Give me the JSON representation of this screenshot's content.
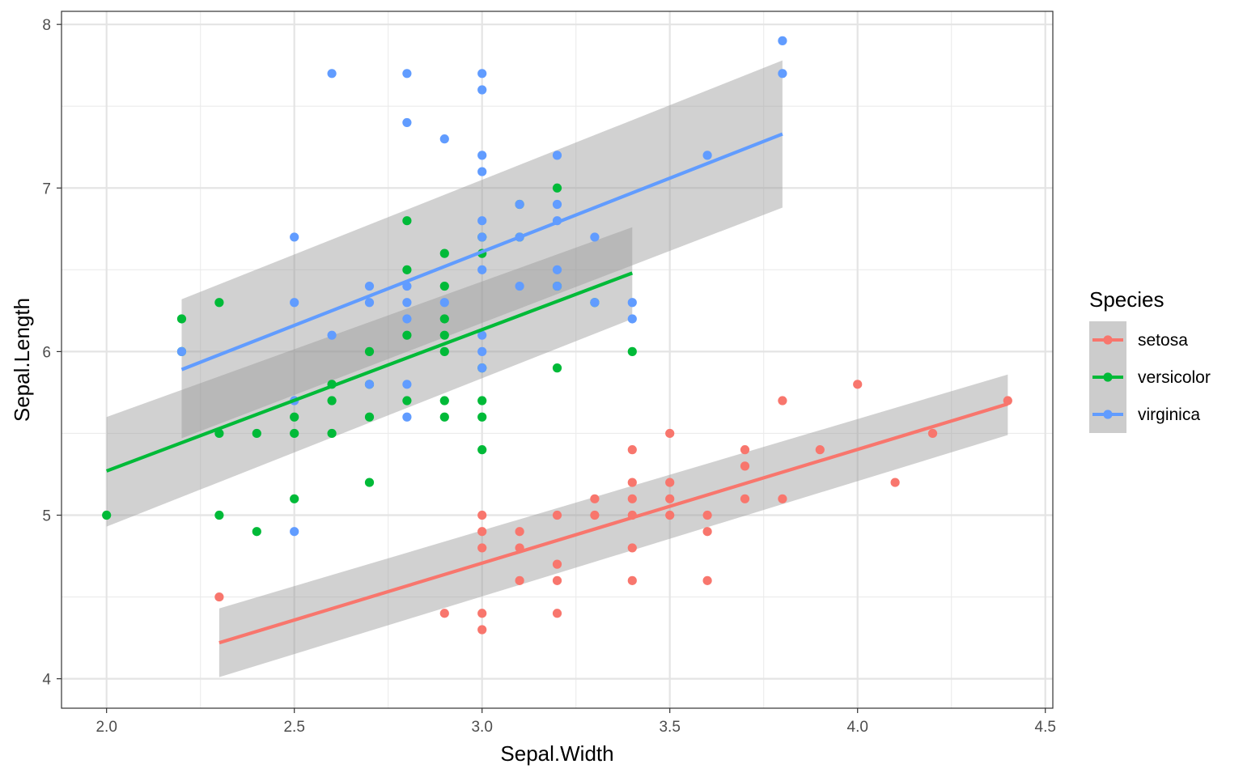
{
  "chart_data": {
    "type": "scatter",
    "xlabel": "Sepal.Width",
    "ylabel": "Sepal.Length",
    "xlim": [
      1.88,
      4.52
    ],
    "ylim": [
      3.82,
      8.08
    ],
    "xticks": [
      2.0,
      2.5,
      3.0,
      3.5,
      4.0,
      4.5
    ],
    "xtick_labels": [
      "2.0",
      "2.5",
      "3.0",
      "3.5",
      "4.0",
      "4.5"
    ],
    "yticks": [
      4,
      5,
      6,
      7,
      8
    ],
    "ytick_labels": [
      "4",
      "5",
      "6",
      "7",
      "8"
    ],
    "grid": true,
    "legend": {
      "title": "Species",
      "position": "right"
    },
    "smooth": "linear fit with grey confidence band",
    "series": [
      {
        "name": "setosa",
        "color": "#F8766D",
        "fit": {
          "x": [
            2.3,
            4.4
          ],
          "y": [
            4.22,
            5.68
          ],
          "lower": [
            4.01,
            5.49
          ],
          "upper": [
            4.43,
            5.86
          ]
        },
        "points": [
          [
            2.3,
            4.5
          ],
          [
            2.9,
            4.4
          ],
          [
            3.0,
            4.4
          ],
          [
            3.0,
            4.3
          ],
          [
            3.0,
            5.0
          ],
          [
            3.0,
            4.9
          ],
          [
            3.0,
            4.8
          ],
          [
            3.1,
            4.9
          ],
          [
            3.1,
            4.8
          ],
          [
            3.1,
            4.6
          ],
          [
            3.2,
            5.0
          ],
          [
            3.2,
            4.7
          ],
          [
            3.2,
            4.6
          ],
          [
            3.2,
            4.4
          ],
          [
            3.3,
            5.1
          ],
          [
            3.3,
            5.0
          ],
          [
            3.4,
            5.4
          ],
          [
            3.4,
            5.2
          ],
          [
            3.4,
            5.1
          ],
          [
            3.4,
            5.0
          ],
          [
            3.4,
            4.8
          ],
          [
            3.4,
            4.6
          ],
          [
            3.5,
            5.5
          ],
          [
            3.5,
            5.2
          ],
          [
            3.5,
            5.1
          ],
          [
            3.5,
            5.0
          ],
          [
            3.6,
            5.0
          ],
          [
            3.6,
            4.9
          ],
          [
            3.6,
            4.6
          ],
          [
            3.7,
            5.4
          ],
          [
            3.7,
            5.3
          ],
          [
            3.7,
            5.1
          ],
          [
            3.8,
            5.7
          ],
          [
            3.8,
            5.1
          ],
          [
            3.9,
            5.4
          ],
          [
            4.0,
            5.8
          ],
          [
            4.1,
            5.2
          ],
          [
            4.2,
            5.5
          ],
          [
            4.4,
            5.7
          ]
        ]
      },
      {
        "name": "versicolor",
        "color": "#00BA38",
        "fit": {
          "x": [
            2.0,
            3.4
          ],
          "y": [
            5.27,
            6.48
          ],
          "lower": [
            4.93,
            6.2
          ],
          "upper": [
            5.6,
            6.76
          ]
        },
        "points": [
          [
            2.0,
            5.0
          ],
          [
            2.2,
            6.2
          ],
          [
            2.2,
            6.0
          ],
          [
            2.3,
            6.3
          ],
          [
            2.3,
            5.5
          ],
          [
            2.3,
            5.0
          ],
          [
            2.4,
            5.5
          ],
          [
            2.4,
            4.9
          ],
          [
            2.5,
            5.6
          ],
          [
            2.5,
            5.5
          ],
          [
            2.5,
            5.1
          ],
          [
            2.6,
            5.8
          ],
          [
            2.6,
            5.7
          ],
          [
            2.6,
            5.5
          ],
          [
            2.7,
            6.0
          ],
          [
            2.7,
            5.8
          ],
          [
            2.7,
            5.6
          ],
          [
            2.7,
            5.2
          ],
          [
            2.8,
            6.8
          ],
          [
            2.8,
            6.5
          ],
          [
            2.8,
            6.1
          ],
          [
            2.8,
            5.7
          ],
          [
            2.9,
            6.6
          ],
          [
            2.9,
            6.4
          ],
          [
            2.9,
            6.2
          ],
          [
            2.9,
            6.1
          ],
          [
            2.9,
            6.0
          ],
          [
            2.9,
            5.7
          ],
          [
            2.9,
            5.6
          ],
          [
            3.0,
            6.7
          ],
          [
            3.0,
            6.6
          ],
          [
            3.0,
            5.9
          ],
          [
            3.0,
            5.7
          ],
          [
            3.0,
            5.6
          ],
          [
            3.0,
            5.4
          ],
          [
            3.1,
            6.9
          ],
          [
            3.1,
            6.7
          ],
          [
            3.2,
            7.0
          ],
          [
            3.2,
            6.4
          ],
          [
            3.2,
            5.9
          ],
          [
            3.3,
            6.3
          ],
          [
            3.4,
            6.0
          ]
        ]
      },
      {
        "name": "virginica",
        "color": "#619CFF",
        "fit": {
          "x": [
            2.2,
            3.8
          ],
          "y": [
            5.89,
            7.33
          ],
          "lower": [
            5.47,
            6.88
          ],
          "upper": [
            6.32,
            7.78
          ]
        },
        "points": [
          [
            2.2,
            6.0
          ],
          [
            2.5,
            6.7
          ],
          [
            2.5,
            6.3
          ],
          [
            2.5,
            5.7
          ],
          [
            2.5,
            4.9
          ],
          [
            2.6,
            7.7
          ],
          [
            2.6,
            6.1
          ],
          [
            2.7,
            6.4
          ],
          [
            2.7,
            6.3
          ],
          [
            2.7,
            5.8
          ],
          [
            2.8,
            7.7
          ],
          [
            2.8,
            7.4
          ],
          [
            2.8,
            6.4
          ],
          [
            2.8,
            6.3
          ],
          [
            2.8,
            6.2
          ],
          [
            2.8,
            5.8
          ],
          [
            2.8,
            5.6
          ],
          [
            2.9,
            7.3
          ],
          [
            2.9,
            6.3
          ],
          [
            3.0,
            7.7
          ],
          [
            3.0,
            7.6
          ],
          [
            3.0,
            7.2
          ],
          [
            3.0,
            7.1
          ],
          [
            3.0,
            6.8
          ],
          [
            3.0,
            6.7
          ],
          [
            3.0,
            6.5
          ],
          [
            3.0,
            6.1
          ],
          [
            3.0,
            6.0
          ],
          [
            3.0,
            5.9
          ],
          [
            3.1,
            6.9
          ],
          [
            3.1,
            6.7
          ],
          [
            3.1,
            6.4
          ],
          [
            3.2,
            7.2
          ],
          [
            3.2,
            6.9
          ],
          [
            3.2,
            6.8
          ],
          [
            3.2,
            6.5
          ],
          [
            3.2,
            6.4
          ],
          [
            3.3,
            6.7
          ],
          [
            3.3,
            6.3
          ],
          [
            3.4,
            6.3
          ],
          [
            3.4,
            6.2
          ],
          [
            3.6,
            7.2
          ],
          [
            3.8,
            7.9
          ],
          [
            3.8,
            7.7
          ]
        ]
      }
    ]
  }
}
